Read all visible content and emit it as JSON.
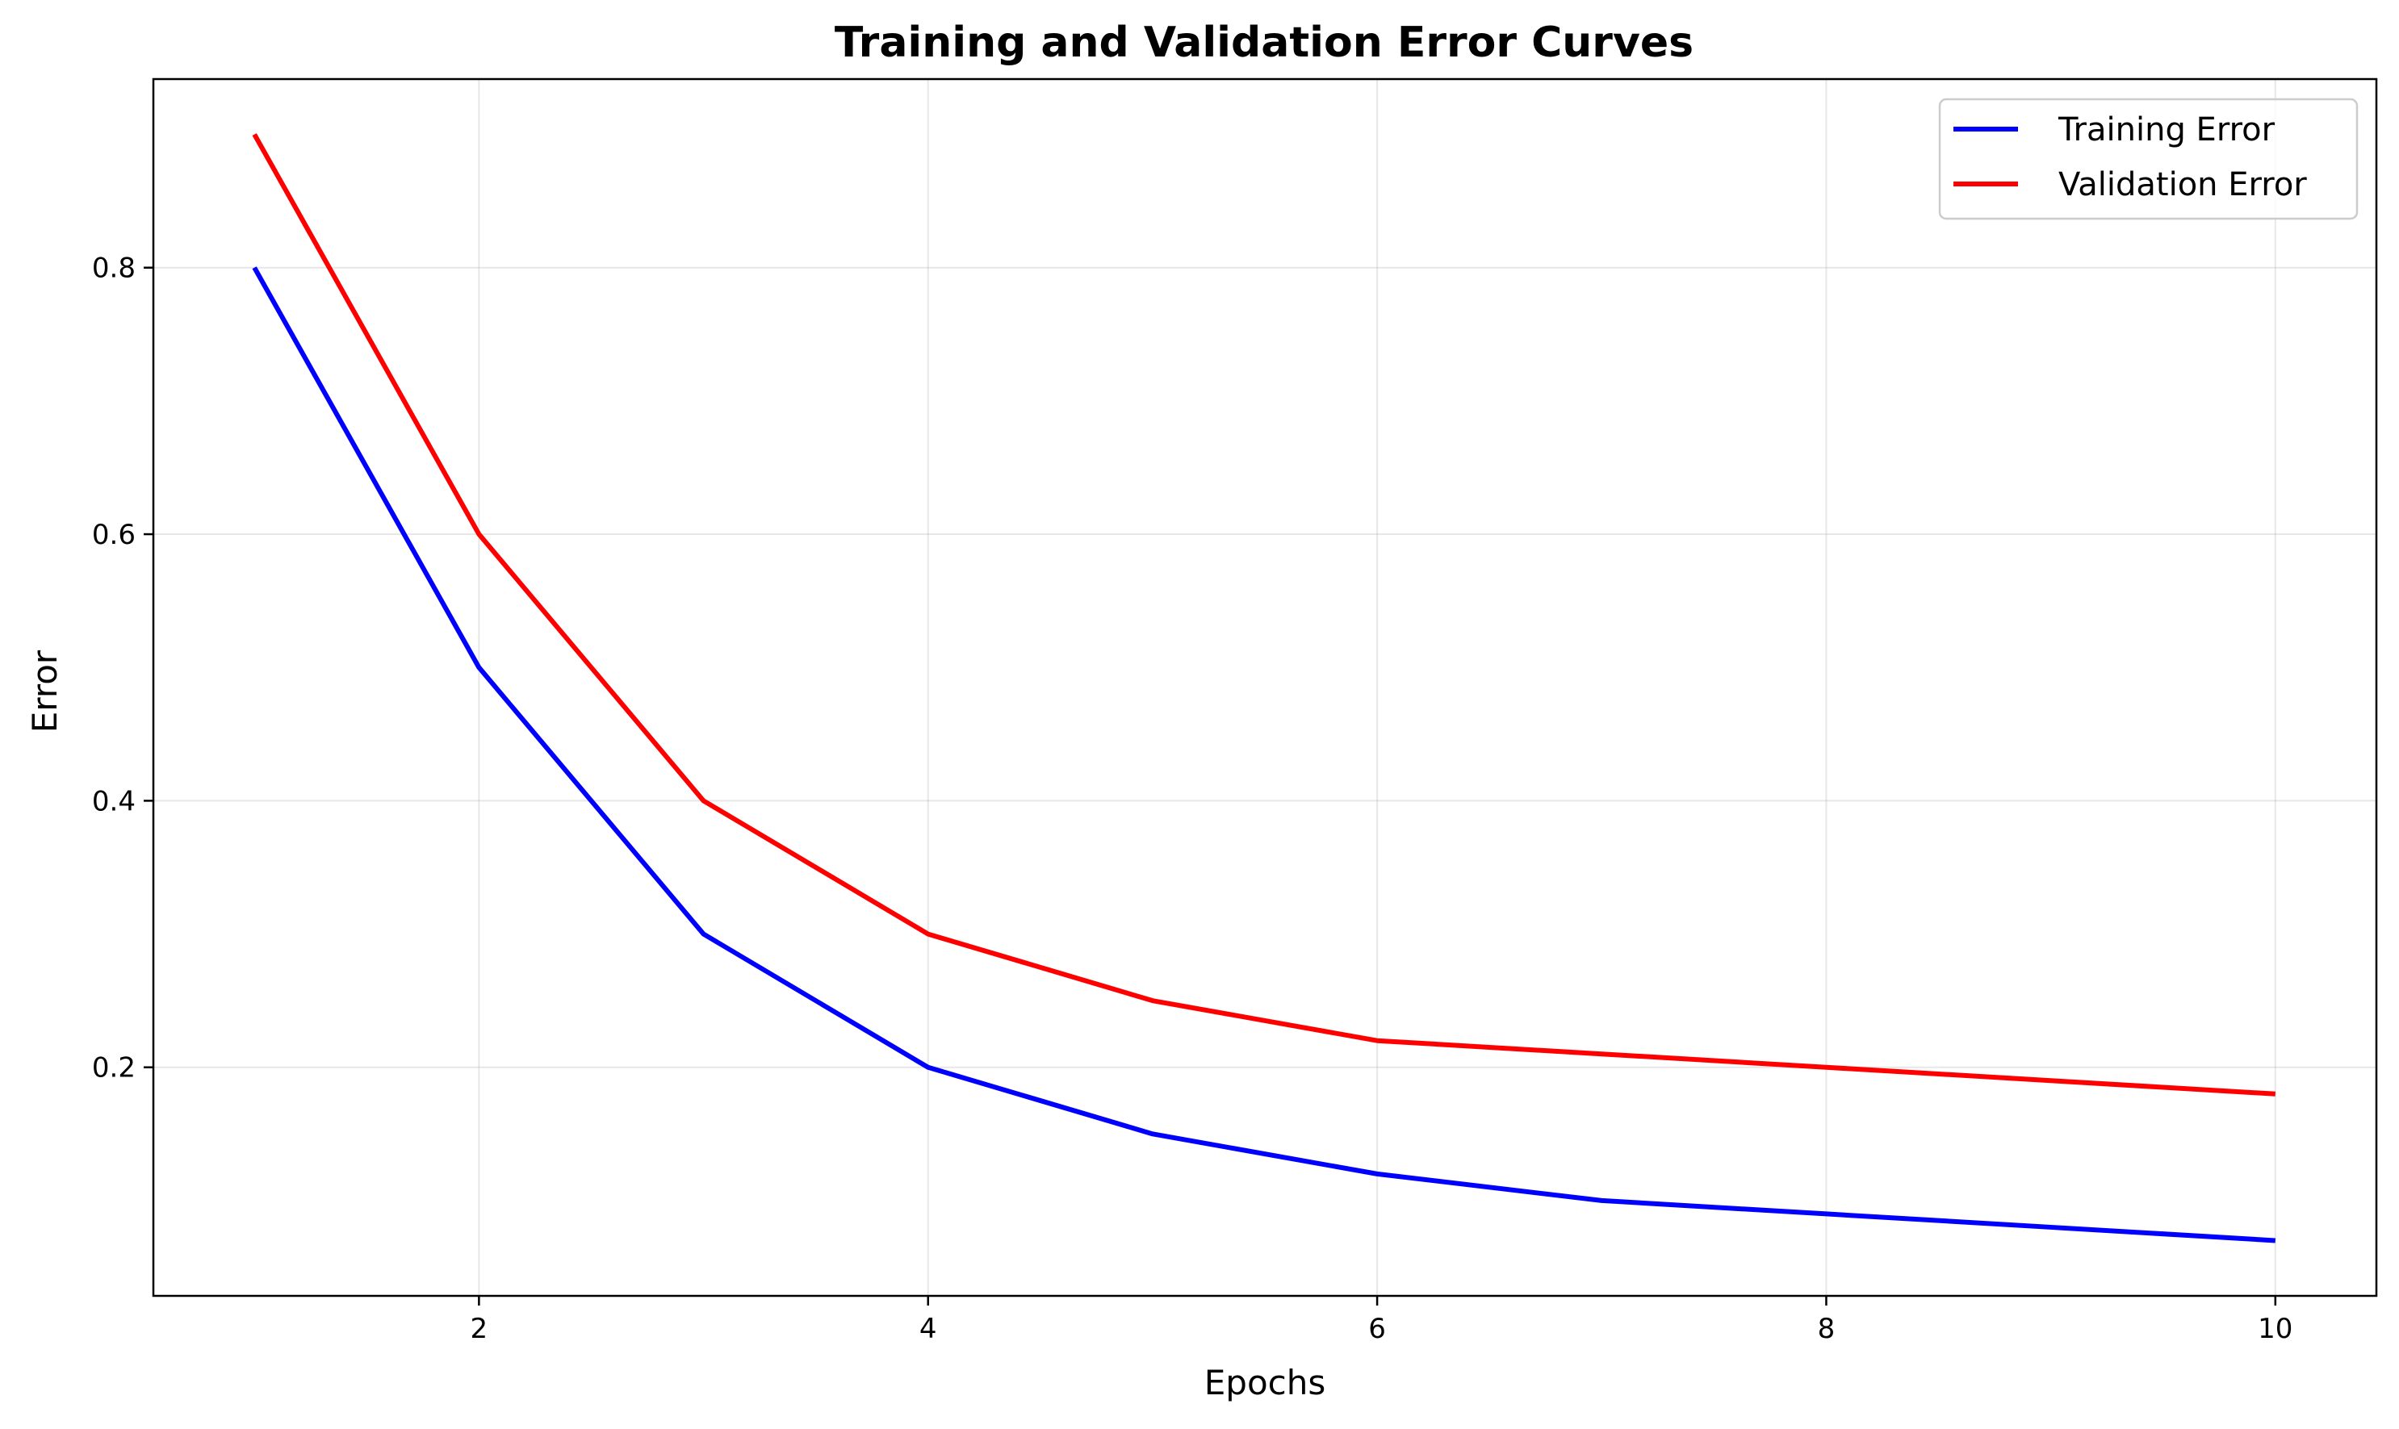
{
  "chart_data": {
    "type": "line",
    "title": "Training and Validation Error Curves",
    "xlabel": "Epochs",
    "ylabel": "Error",
    "x": [
      1,
      2,
      3,
      4,
      5,
      6,
      7,
      8,
      9,
      10
    ],
    "series": [
      {
        "name": "Training Error",
        "color": "#0000ff",
        "values": [
          0.8,
          0.5,
          0.3,
          0.2,
          0.15,
          0.12,
          0.1,
          0.09,
          0.08,
          0.07
        ]
      },
      {
        "name": "Validation Error",
        "color": "#ff0000",
        "values": [
          0.9,
          0.6,
          0.4,
          0.3,
          0.25,
          0.22,
          0.21,
          0.2,
          0.19,
          0.18
        ]
      }
    ],
    "xlim": [
      0.55,
      10.45
    ],
    "ylim": [
      0.0285,
      0.9415
    ],
    "xticks": [
      2,
      4,
      6,
      8,
      10
    ],
    "xtick_labels": [
      "2",
      "4",
      "6",
      "8",
      "10"
    ],
    "yticks": [
      0.2,
      0.4,
      0.6,
      0.8
    ],
    "ytick_labels": [
      "0.2",
      "0.4",
      "0.6",
      "0.8"
    ],
    "grid": true,
    "legend_position": "top-right"
  }
}
